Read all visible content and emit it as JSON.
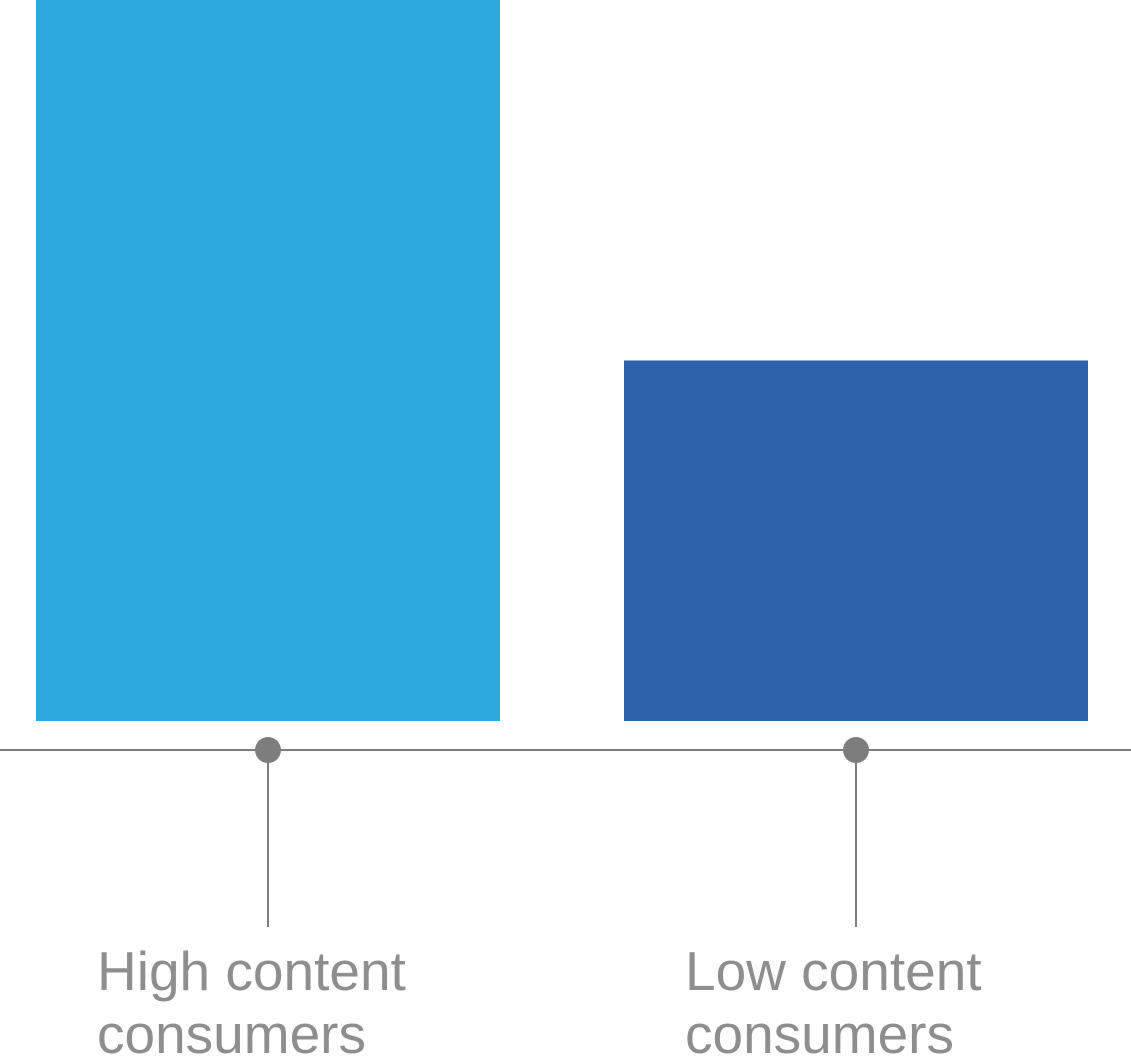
{
  "chart_data": {
    "type": "bar",
    "categories": [
      "High content consumers",
      "Low content consumers"
    ],
    "category_lines": [
      [
        "High content",
        "consumers"
      ],
      [
        "Low content",
        "consumers"
      ]
    ],
    "values": [
      2,
      1
    ],
    "ylim": [
      0,
      2
    ],
    "grid": false,
    "legend": "none",
    "colors": [
      "#2ea9df",
      "#2f62ad"
    ],
    "axis_color": "#7d7d7d",
    "label_color": "#8e8e8e"
  }
}
